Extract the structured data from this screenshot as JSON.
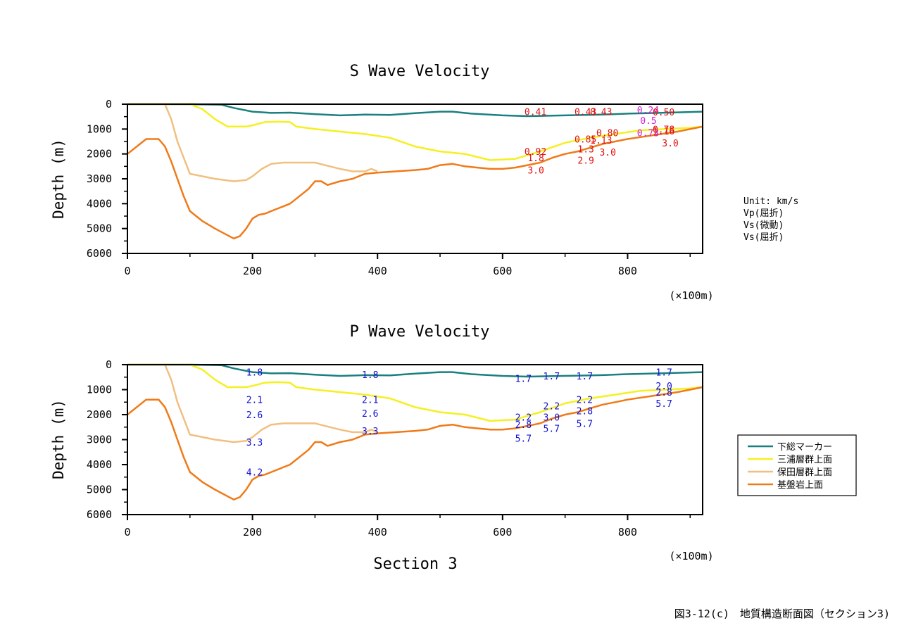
{
  "side_legend": {
    "unit": "Unit: km/s",
    "items": [
      {
        "text": "Vp(屈折)",
        "color": "#1010d0"
      },
      {
        "text": "Vs(微動)",
        "color": "#e01010"
      },
      {
        "text": "Vs(屈折)",
        "color": "#d020d0"
      }
    ]
  },
  "legend": {
    "items": [
      {
        "text": "下総マーカー",
        "color": "#1a7f7f"
      },
      {
        "text": "三浦層群上面",
        "color": "#f5f020"
      },
      {
        "text": "保田層群上面",
        "color": "#f0c080"
      },
      {
        "text": "基盤岩上面",
        "color": "#f07a18"
      }
    ]
  },
  "caption": "図3-12(c)　地質構造断面図（セクション3)",
  "chart_data": [
    {
      "type": "line",
      "title": "S Wave Velocity",
      "xlabel": "",
      "ylabel": "Depth (m)",
      "x_unit": "(×100m)",
      "xlim": [
        0,
        920
      ],
      "ylim": [
        6000,
        0
      ],
      "x_ticks": [
        "0",
        "200",
        "400",
        "600",
        "800"
      ],
      "y_ticks": [
        "0",
        "1000",
        "2000",
        "3000",
        "4000",
        "5000",
        "6000"
      ],
      "series": [
        {
          "name": "下総マーカー",
          "color": "#1a7f7f",
          "x": [
            0,
            60,
            100,
            150,
            170,
            200,
            230,
            260,
            300,
            340,
            380,
            420,
            460,
            500,
            520,
            550,
            600,
            640,
            680,
            720,
            760,
            800,
            850,
            920
          ],
          "y": [
            0,
            0,
            0,
            20,
            150,
            300,
            350,
            340,
            400,
            450,
            420,
            430,
            360,
            300,
            300,
            380,
            450,
            480,
            460,
            440,
            420,
            380,
            350,
            300
          ]
        },
        {
          "name": "三浦層群上面",
          "color": "#f5f020",
          "x": [
            0,
            60,
            100,
            120,
            140,
            160,
            190,
            200,
            220,
            240,
            260,
            270,
            300,
            340,
            380,
            420,
            460,
            500,
            540,
            580,
            620,
            660,
            700,
            740,
            780,
            820,
            860,
            900,
            920
          ],
          "y": [
            0,
            0,
            0,
            200,
            600,
            900,
            900,
            850,
            720,
            700,
            720,
            900,
            1000,
            1100,
            1200,
            1350,
            1700,
            1900,
            2000,
            2250,
            2200,
            1900,
            1550,
            1350,
            1200,
            1050,
            1000,
            950,
            900
          ]
        },
        {
          "name": "保田層群上面",
          "color": "#f0c080",
          "x": [
            0,
            60,
            70,
            80,
            100,
            140,
            170,
            190,
            200,
            215,
            230,
            250,
            300,
            340,
            360,
            380,
            390,
            400
          ],
          "y": [
            0,
            0,
            600,
            1500,
            2800,
            3000,
            3100,
            3050,
            2900,
            2600,
            2400,
            2350,
            2350,
            2600,
            2700,
            2700,
            2600,
            2700
          ]
        },
        {
          "name": "基盤岩上面",
          "color": "#f07a18",
          "x": [
            0,
            30,
            50,
            60,
            70,
            80,
            90,
            100,
            120,
            140,
            170,
            180,
            190,
            200,
            210,
            220,
            230,
            240,
            250,
            260,
            270,
            280,
            290,
            300,
            310,
            320,
            340,
            350,
            360,
            380,
            400,
            430,
            460,
            480,
            500,
            520,
            540,
            560,
            580,
            600,
            620,
            640,
            660,
            680,
            700,
            720,
            740,
            760,
            780,
            800,
            840,
            880,
            920
          ],
          "y": [
            2000,
            1400,
            1400,
            1700,
            2300,
            3000,
            3700,
            4300,
            4700,
            5000,
            5400,
            5300,
            5000,
            4600,
            4450,
            4400,
            4300,
            4200,
            4100,
            4000,
            3800,
            3600,
            3400,
            3100,
            3100,
            3250,
            3100,
            3050,
            3000,
            2800,
            2750,
            2700,
            2650,
            2600,
            2450,
            2400,
            2500,
            2550,
            2600,
            2600,
            2550,
            2450,
            2350,
            2150,
            2000,
            1900,
            1750,
            1600,
            1500,
            1400,
            1250,
            1100,
            900
          ]
        }
      ],
      "annotations": [
        {
          "text": "0.41",
          "x": 635,
          "y": 300,
          "color": "#e01010"
        },
        {
          "text": "0.43",
          "x": 715,
          "y": 300,
          "color": "#e01010"
        },
        {
          "text": "0.43",
          "x": 740,
          "y": 300,
          "color": "#e01010"
        },
        {
          "text": "0.24",
          "x": 815,
          "y": 220,
          "color": "#d020d0"
        },
        {
          "text": "0.50",
          "x": 840,
          "y": 310,
          "color": "#e01010"
        },
        {
          "text": "0.5",
          "x": 820,
          "y": 650,
          "color": "#d020d0"
        },
        {
          "text": "0.78",
          "x": 840,
          "y": 1000,
          "color": "#e01010"
        },
        {
          "text": "1.16",
          "x": 840,
          "y": 1080,
          "color": "#e01010"
        },
        {
          "text": "0.73",
          "x": 815,
          "y": 1150,
          "color": "#d020d0"
        },
        {
          "text": "0.80",
          "x": 750,
          "y": 1150,
          "color": "#e01010"
        },
        {
          "text": "0.85",
          "x": 715,
          "y": 1400,
          "color": "#e01010"
        },
        {
          "text": "1.13",
          "x": 740,
          "y": 1440,
          "color": "#e01010"
        },
        {
          "text": "1.3",
          "x": 720,
          "y": 1800,
          "color": "#e01010"
        },
        {
          "text": "3.0",
          "x": 755,
          "y": 1930,
          "color": "#e01010"
        },
        {
          "text": "3.0",
          "x": 855,
          "y": 1550,
          "color": "#e01010"
        },
        {
          "text": "0.92",
          "x": 635,
          "y": 1900,
          "color": "#e01010"
        },
        {
          "text": "1.8",
          "x": 640,
          "y": 2150,
          "color": "#e01010"
        },
        {
          "text": "2.9",
          "x": 720,
          "y": 2250,
          "color": "#e01010"
        },
        {
          "text": "3.0",
          "x": 640,
          "y": 2650,
          "color": "#e01010"
        }
      ]
    },
    {
      "type": "line",
      "title": "P Wave Velocity",
      "xlabel": "Section 3",
      "ylabel": "Depth (m)",
      "x_unit": "(×100m)",
      "xlim": [
        0,
        920
      ],
      "ylim": [
        6000,
        0
      ],
      "x_ticks": [
        "0",
        "200",
        "400",
        "600",
        "800"
      ],
      "y_ticks": [
        "0",
        "1000",
        "2000",
        "3000",
        "4000",
        "5000",
        "6000"
      ],
      "series": [
        {
          "name": "下総マーカー",
          "color": "#1a7f7f",
          "x": [
            0,
            60,
            100,
            150,
            170,
            200,
            230,
            260,
            300,
            340,
            380,
            420,
            460,
            500,
            520,
            550,
            600,
            640,
            680,
            720,
            760,
            800,
            850,
            920
          ],
          "y": [
            0,
            0,
            0,
            20,
            150,
            300,
            350,
            340,
            400,
            450,
            420,
            430,
            360,
            300,
            300,
            380,
            450,
            480,
            460,
            440,
            420,
            380,
            350,
            300
          ]
        },
        {
          "name": "三浦層群上面",
          "color": "#f5f020",
          "x": [
            0,
            60,
            100,
            120,
            140,
            160,
            190,
            200,
            220,
            240,
            260,
            270,
            300,
            340,
            380,
            420,
            460,
            500,
            540,
            580,
            620,
            660,
            700,
            740,
            780,
            820,
            860,
            900,
            920
          ],
          "y": [
            0,
            0,
            0,
            200,
            600,
            900,
            900,
            850,
            720,
            700,
            720,
            900,
            1000,
            1100,
            1200,
            1350,
            1700,
            1900,
            2000,
            2250,
            2200,
            1900,
            1550,
            1350,
            1200,
            1050,
            1000,
            950,
            900
          ]
        },
        {
          "name": "保田層群上面",
          "color": "#f0c080",
          "x": [
            0,
            60,
            70,
            80,
            100,
            140,
            170,
            190,
            200,
            215,
            230,
            250,
            300,
            340,
            360,
            380,
            390,
            400
          ],
          "y": [
            0,
            0,
            600,
            1500,
            2800,
            3000,
            3100,
            3050,
            2900,
            2600,
            2400,
            2350,
            2350,
            2600,
            2700,
            2700,
            2600,
            2700
          ]
        },
        {
          "name": "基盤岩上面",
          "color": "#f07a18",
          "x": [
            0,
            30,
            50,
            60,
            70,
            80,
            90,
            100,
            120,
            140,
            170,
            180,
            190,
            200,
            210,
            220,
            230,
            240,
            250,
            260,
            270,
            280,
            290,
            300,
            310,
            320,
            340,
            350,
            360,
            380,
            400,
            430,
            460,
            480,
            500,
            520,
            540,
            560,
            580,
            600,
            620,
            640,
            660,
            680,
            700,
            720,
            740,
            760,
            780,
            800,
            840,
            880,
            920
          ],
          "y": [
            2000,
            1400,
            1400,
            1700,
            2300,
            3000,
            3700,
            4300,
            4700,
            5000,
            5400,
            5300,
            5000,
            4600,
            4450,
            4400,
            4300,
            4200,
            4100,
            4000,
            3800,
            3600,
            3400,
            3100,
            3100,
            3250,
            3100,
            3050,
            3000,
            2800,
            2750,
            2700,
            2650,
            2600,
            2450,
            2400,
            2500,
            2550,
            2600,
            2600,
            2550,
            2450,
            2350,
            2150,
            2000,
            1900,
            1750,
            1600,
            1500,
            1400,
            1250,
            1100,
            900
          ]
        }
      ],
      "annotations": [
        {
          "text": "1.8",
          "x": 190,
          "y": 300,
          "color": "#1010d0"
        },
        {
          "text": "2.1",
          "x": 190,
          "y": 1400,
          "color": "#1010d0"
        },
        {
          "text": "2.6",
          "x": 190,
          "y": 2000,
          "color": "#1010d0"
        },
        {
          "text": "3.3",
          "x": 190,
          "y": 3100,
          "color": "#1010d0"
        },
        {
          "text": "4.2",
          "x": 190,
          "y": 4300,
          "color": "#1010d0"
        },
        {
          "text": "1.8",
          "x": 375,
          "y": 400,
          "color": "#1010d0"
        },
        {
          "text": "2.1",
          "x": 375,
          "y": 1400,
          "color": "#1010d0"
        },
        {
          "text": "2.6",
          "x": 375,
          "y": 1950,
          "color": "#1010d0"
        },
        {
          "text": "3.3",
          "x": 375,
          "y": 2650,
          "color": "#1010d0"
        },
        {
          "text": "1.7",
          "x": 620,
          "y": 550,
          "color": "#1010d0"
        },
        {
          "text": "1.7",
          "x": 665,
          "y": 450,
          "color": "#1010d0"
        },
        {
          "text": "1.7",
          "x": 718,
          "y": 450,
          "color": "#1010d0"
        },
        {
          "text": "1.7",
          "x": 845,
          "y": 300,
          "color": "#1010d0"
        },
        {
          "text": "2.2",
          "x": 620,
          "y": 2100,
          "color": "#1010d0"
        },
        {
          "text": "2.8",
          "x": 620,
          "y": 2400,
          "color": "#1010d0"
        },
        {
          "text": "5.7",
          "x": 620,
          "y": 2950,
          "color": "#1010d0"
        },
        {
          "text": "2.2",
          "x": 665,
          "y": 1650,
          "color": "#1010d0"
        },
        {
          "text": "3.0",
          "x": 665,
          "y": 2100,
          "color": "#1010d0"
        },
        {
          "text": "5.7",
          "x": 665,
          "y": 2550,
          "color": "#1010d0"
        },
        {
          "text": "2.2",
          "x": 718,
          "y": 1400,
          "color": "#1010d0"
        },
        {
          "text": "2.8",
          "x": 718,
          "y": 1850,
          "color": "#1010d0"
        },
        {
          "text": "5.7",
          "x": 718,
          "y": 2350,
          "color": "#1010d0"
        },
        {
          "text": "2.0",
          "x": 845,
          "y": 850,
          "color": "#1010d0"
        },
        {
          "text": "2.8",
          "x": 845,
          "y": 1100,
          "color": "#1010d0"
        },
        {
          "text": "5.7",
          "x": 845,
          "y": 1550,
          "color": "#1010d0"
        }
      ]
    }
  ]
}
